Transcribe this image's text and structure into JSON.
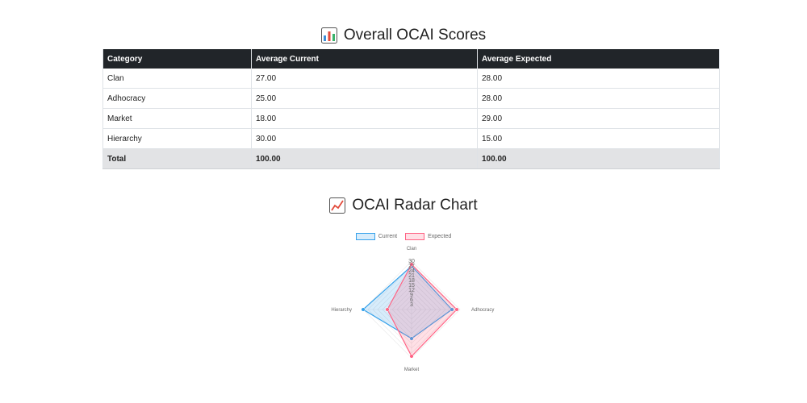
{
  "scores": {
    "title": "Overall OCAI Scores",
    "headers": [
      "Category",
      "Average Current",
      "Average Expected"
    ],
    "rows": [
      {
        "category": "Clan",
        "current": "27.00",
        "expected": "28.00"
      },
      {
        "category": "Adhocracy",
        "current": "25.00",
        "expected": "28.00"
      },
      {
        "category": "Market",
        "current": "18.00",
        "expected": "29.00"
      },
      {
        "category": "Hierarchy",
        "current": "30.00",
        "expected": "15.00"
      }
    ],
    "total": {
      "label": "Total",
      "current": "100.00",
      "expected": "100.00"
    }
  },
  "radar": {
    "title": "OCAI Radar Chart",
    "legend": [
      {
        "label": "Current",
        "color": "#36a2eb"
      },
      {
        "label": "Expected",
        "color": "#ff6384"
      }
    ]
  },
  "chart_data": {
    "type": "radar",
    "categories": [
      "Clan",
      "Adhocracy",
      "Market",
      "Hierarchy"
    ],
    "series": [
      {
        "name": "Current",
        "values": [
          27,
          25,
          18,
          30
        ],
        "color": "#36a2eb"
      },
      {
        "name": "Expected",
        "values": [
          28,
          28,
          29,
          15
        ],
        "color": "#ff6384"
      }
    ],
    "r_ticks": [
      "3",
      "6",
      "9",
      "12",
      "15",
      "18",
      "21",
      "24",
      "27",
      "30"
    ],
    "r_range": [
      0,
      30
    ]
  }
}
